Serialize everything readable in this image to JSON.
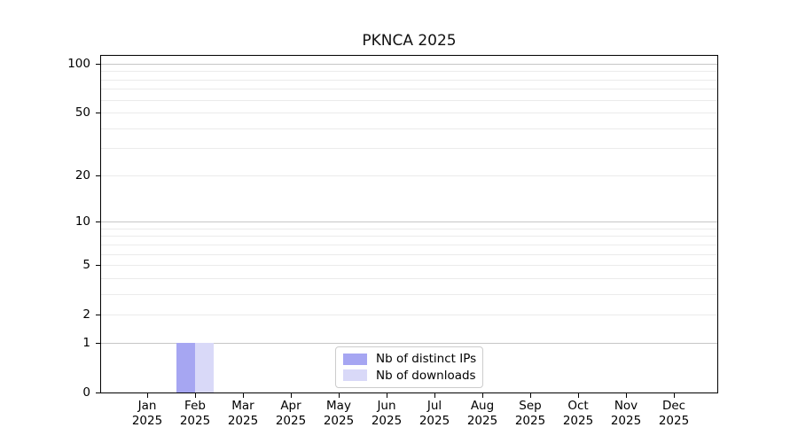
{
  "title": "PKNCA 2025",
  "chart_data": {
    "type": "bar",
    "title": "PKNCA 2025",
    "categories": [
      "Jan 2025",
      "Feb 2025",
      "Mar 2025",
      "Apr 2025",
      "May 2025",
      "Jun 2025",
      "Jul 2025",
      "Aug 2025",
      "Sep 2025",
      "Oct 2025",
      "Nov 2025",
      "Dec 2025"
    ],
    "series": [
      {
        "name": "Nb of distinct IPs",
        "color": "#a6a6f2",
        "values": [
          0,
          1,
          0,
          0,
          0,
          0,
          0,
          0,
          0,
          0,
          0,
          0
        ]
      },
      {
        "name": "Nb of downloads",
        "color": "#d9d9f8",
        "values": [
          0,
          1,
          0,
          0,
          0,
          0,
          0,
          0,
          0,
          0,
          0,
          0
        ]
      }
    ],
    "xlabel": "",
    "ylabel": "",
    "y_scale": "log1p",
    "ylim": [
      0,
      112
    ],
    "y_ticks": [
      0,
      1,
      2,
      5,
      10,
      20,
      50,
      100
    ],
    "y_major_gridlines": [
      1,
      10,
      100
    ],
    "y_minor_gridlines": [
      2,
      3,
      4,
      5,
      6,
      7,
      8,
      9,
      20,
      30,
      40,
      50,
      60,
      70,
      80,
      90
    ],
    "grid": true,
    "legend_position": "inside-bottom-center"
  },
  "colors": {
    "bar_distinct_ips": "#a6a6f2",
    "bar_downloads": "#d9d9f8",
    "gridline_major": "#c6c6c6",
    "gridline_minor": "#ebebeb",
    "axis": "#000000",
    "legend_border": "#cccccc"
  }
}
